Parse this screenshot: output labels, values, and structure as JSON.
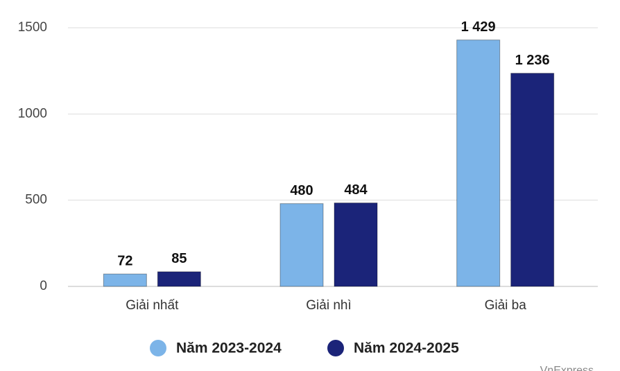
{
  "chart_data": {
    "type": "bar",
    "categories": [
      "Giải nhất",
      "Giải nhì",
      "Giải ba"
    ],
    "series": [
      {
        "name": "Năm 2023-2024",
        "color": "#7cb4e8",
        "values": [
          72,
          480,
          1429
        ],
        "value_labels": [
          "72",
          "480",
          "1 429"
        ]
      },
      {
        "name": "Năm 2024-2025",
        "color": "#1b2479",
        "values": [
          85,
          484,
          1236
        ],
        "value_labels": [
          "85",
          "484",
          "1 236"
        ]
      }
    ],
    "ylim": [
      0,
      1500
    ],
    "yticks": [
      0,
      500,
      1000,
      1500
    ],
    "grid": true,
    "legend": "bottom",
    "source": "VnExpress"
  }
}
